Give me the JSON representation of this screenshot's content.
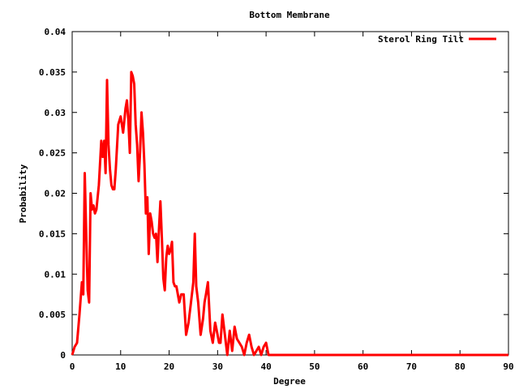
{
  "chart_data": {
    "type": "line",
    "title": "Bottom Membrane",
    "xlabel": "Degree",
    "ylabel": "Probability",
    "xlim": [
      0,
      90
    ],
    "ylim": [
      0,
      0.04
    ],
    "x_ticks": [
      "0",
      "10",
      "20",
      "30",
      "40",
      "50",
      "60",
      "70",
      "80",
      "90"
    ],
    "y_ticks": [
      "0",
      "0.005",
      "0.01",
      "0.015",
      "0.02",
      "0.025",
      "0.03",
      "0.035",
      "0.04"
    ],
    "grid": false,
    "legend_position": "top-right",
    "series": [
      {
        "name": "Sterol Ring Tilt",
        "color": "#ff0000",
        "x": [
          0,
          0.5,
          1,
          1.5,
          2,
          2.3,
          2.6,
          2.9,
          3.2,
          3.5,
          3.8,
          4.1,
          4.4,
          4.7,
          5,
          5.5,
          6,
          6.3,
          6.6,
          6.9,
          7.2,
          7.5,
          7.8,
          8.1,
          8.4,
          8.7,
          9,
          9.5,
          10,
          10.5,
          11,
          11.3,
          11.6,
          11.9,
          12.2,
          12.5,
          12.8,
          13.1,
          13.4,
          13.7,
          14,
          14.3,
          14.6,
          14.9,
          15.2,
          15.5,
          15.8,
          16.1,
          16.4,
          16.7,
          17,
          17.3,
          17.6,
          17.9,
          18.2,
          18.5,
          18.8,
          19.1,
          19.4,
          19.7,
          20,
          20.3,
          20.6,
          20.9,
          21.2,
          21.5,
          21.8,
          22.1,
          22.5,
          23,
          23.5,
          24,
          24.5,
          25,
          25.3,
          25.6,
          26,
          26.5,
          27,
          27.3,
          27.6,
          28,
          28.5,
          29,
          29.5,
          30,
          30.3,
          30.6,
          31,
          31.5,
          32,
          32.5,
          33,
          33.5,
          34,
          34.5,
          35,
          35.5,
          36,
          36.5,
          37,
          37.5,
          38,
          38.5,
          39,
          39.5,
          40,
          40.5,
          41,
          42,
          45,
          50,
          60,
          70,
          80,
          90
        ],
        "values": [
          0,
          0.001,
          0.0015,
          0.005,
          0.009,
          0.0075,
          0.0225,
          0.015,
          0.008,
          0.0065,
          0.02,
          0.018,
          0.0185,
          0.0175,
          0.018,
          0.021,
          0.0265,
          0.0245,
          0.0265,
          0.0225,
          0.034,
          0.026,
          0.023,
          0.021,
          0.0205,
          0.0205,
          0.023,
          0.0285,
          0.0295,
          0.0275,
          0.0305,
          0.0315,
          0.029,
          0.025,
          0.035,
          0.0345,
          0.0335,
          0.0285,
          0.026,
          0.0215,
          0.025,
          0.03,
          0.0275,
          0.0235,
          0.0175,
          0.0195,
          0.0125,
          0.0175,
          0.0165,
          0.015,
          0.0145,
          0.015,
          0.0115,
          0.0155,
          0.019,
          0.0145,
          0.0095,
          0.008,
          0.012,
          0.0135,
          0.0125,
          0.013,
          0.014,
          0.009,
          0.0085,
          0.0085,
          0.0075,
          0.0065,
          0.0075,
          0.0075,
          0.0025,
          0.004,
          0.0065,
          0.009,
          0.015,
          0.0085,
          0.0065,
          0.0025,
          0.0045,
          0.0065,
          0.0075,
          0.009,
          0.003,
          0.0015,
          0.004,
          0.0025,
          0.0015,
          0.0015,
          0.005,
          0.0025,
          0,
          0.003,
          0.0005,
          0.0035,
          0.002,
          0.0015,
          0.001,
          0,
          0.0015,
          0.0025,
          0.001,
          0,
          0.0005,
          0.001,
          0,
          0.001,
          0.0015,
          0,
          0,
          0,
          0,
          0,
          0,
          0,
          0,
          0
        ]
      }
    ]
  }
}
